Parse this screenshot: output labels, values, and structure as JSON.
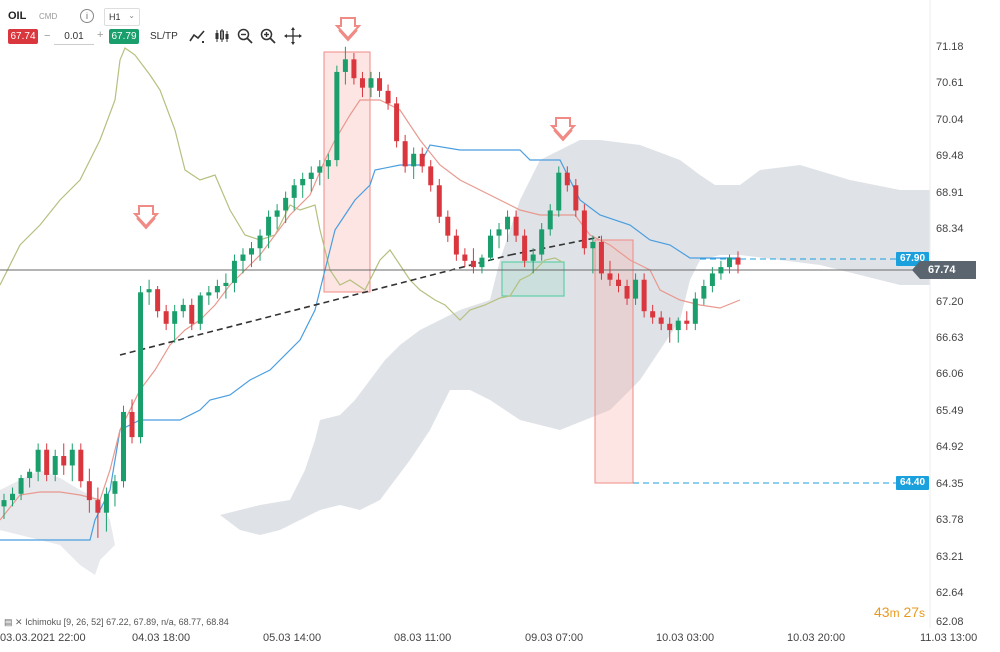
{
  "toolbar": {
    "symbol": "OIL",
    "symbol_type": "CMD",
    "info_icon": "info-icon",
    "timeframe": "H1",
    "bid": "67.74",
    "quantity": "0.01",
    "ask": "67.79",
    "sltp_label": "SL/TP",
    "tools": [
      "chart-type-icon",
      "indicators-icon",
      "zoom-out-icon",
      "zoom-in-icon",
      "crosshair-icon"
    ]
  },
  "price_axis": {
    "ticks": [
      "71.18",
      "70.61",
      "70.04",
      "69.48",
      "68.91",
      "68.34",
      "67.20",
      "66.63",
      "66.06",
      "65.49",
      "64.92",
      "64.35",
      "63.78",
      "63.21",
      "62.64",
      "62.08"
    ],
    "current_price": "67.74",
    "target_labels": [
      {
        "value": "67.90",
        "color": "#1aa0dd"
      },
      {
        "value": "64.40",
        "color": "#1aa0dd"
      }
    ]
  },
  "time_axis": {
    "ticks": [
      "03.03.2021 22:00",
      "04.03 18:00",
      "05.03 14:00",
      "08.03 11:00",
      "09.03 07:00",
      "10.03 03:00",
      "10.03 20:00",
      "11.03 13:00"
    ]
  },
  "indicator": {
    "label": "Ichimoku [9, 26, 52] 67.22, 67.89, n/a, 68.77, 68.84"
  },
  "timer": {
    "minutes": "43",
    "seconds": "27",
    "m_unit": "m",
    "s_unit": "s"
  },
  "colors": {
    "bull": "#1a9e6b",
    "bear": "#d9363e",
    "tenkan": "#e8998f",
    "kijun": "#4a9ee0",
    "chikou": "#b5c07f",
    "cloud": "#c9ced6",
    "zone_red": "#f5b5b0",
    "zone_green": "#5fd0a8"
  },
  "chart_data": {
    "type": "candlestick",
    "price_range": [
      62.08,
      71.6
    ],
    "current_price": 67.74,
    "candles": [
      [
        63.9,
        64.1,
        63.7,
        64.0
      ],
      [
        64.0,
        64.2,
        63.9,
        64.1
      ],
      [
        64.1,
        64.4,
        64.0,
        64.35
      ],
      [
        64.35,
        64.5,
        64.2,
        64.45
      ],
      [
        64.45,
        64.9,
        64.3,
        64.8
      ],
      [
        64.8,
        64.9,
        64.3,
        64.4
      ],
      [
        64.4,
        64.8,
        64.3,
        64.7
      ],
      [
        64.7,
        64.9,
        64.4,
        64.55
      ],
      [
        64.55,
        64.9,
        64.3,
        64.8
      ],
      [
        64.8,
        64.9,
        64.2,
        64.3
      ],
      [
        64.3,
        64.5,
        63.8,
        64.0
      ],
      [
        64.0,
        64.2,
        63.4,
        63.8
      ],
      [
        63.8,
        64.2,
        63.5,
        64.1
      ],
      [
        64.1,
        64.4,
        63.9,
        64.3
      ],
      [
        64.3,
        65.5,
        64.2,
        65.4
      ],
      [
        65.4,
        65.6,
        64.9,
        65.0
      ],
      [
        65.0,
        67.4,
        64.9,
        67.3
      ],
      [
        67.3,
        67.5,
        67.1,
        67.35
      ],
      [
        67.35,
        67.4,
        66.9,
        67.0
      ],
      [
        67.0,
        67.1,
        66.7,
        66.8
      ],
      [
        66.8,
        67.1,
        66.5,
        67.0
      ],
      [
        67.0,
        67.2,
        66.9,
        67.1
      ],
      [
        67.1,
        67.2,
        66.7,
        66.8
      ],
      [
        66.8,
        67.3,
        66.7,
        67.25
      ],
      [
        67.25,
        67.4,
        67.1,
        67.3
      ],
      [
        67.3,
        67.5,
        67.2,
        67.4
      ],
      [
        67.4,
        67.6,
        67.2,
        67.45
      ],
      [
        67.45,
        67.9,
        67.3,
        67.8
      ],
      [
        67.8,
        68.0,
        67.6,
        67.9
      ],
      [
        67.9,
        68.1,
        67.7,
        68.0
      ],
      [
        68.0,
        68.3,
        67.8,
        68.2
      ],
      [
        68.2,
        68.6,
        68.0,
        68.5
      ],
      [
        68.5,
        68.7,
        68.3,
        68.6
      ],
      [
        68.6,
        68.9,
        68.4,
        68.8
      ],
      [
        68.8,
        69.1,
        68.6,
        69.0
      ],
      [
        69.0,
        69.2,
        68.8,
        69.1
      ],
      [
        69.1,
        69.3,
        68.9,
        69.2
      ],
      [
        69.2,
        69.4,
        69.0,
        69.3
      ],
      [
        69.3,
        69.5,
        69.1,
        69.4
      ],
      [
        69.4,
        70.9,
        69.3,
        70.8
      ],
      [
        70.8,
        71.2,
        70.6,
        71.0
      ],
      [
        71.0,
        71.1,
        70.6,
        70.7
      ],
      [
        70.7,
        70.8,
        70.4,
        70.55
      ],
      [
        70.55,
        70.8,
        70.4,
        70.7
      ],
      [
        70.7,
        70.8,
        70.4,
        70.5
      ],
      [
        70.5,
        70.6,
        70.2,
        70.3
      ],
      [
        70.3,
        70.4,
        69.6,
        69.7
      ],
      [
        69.7,
        69.8,
        69.2,
        69.3
      ],
      [
        69.3,
        69.6,
        69.1,
        69.5
      ],
      [
        69.5,
        69.6,
        69.2,
        69.3
      ],
      [
        69.3,
        69.4,
        68.9,
        69.0
      ],
      [
        69.0,
        69.1,
        68.4,
        68.5
      ],
      [
        68.5,
        68.6,
        68.1,
        68.2
      ],
      [
        68.2,
        68.3,
        67.8,
        67.9
      ],
      [
        67.9,
        68.0,
        67.7,
        67.8
      ],
      [
        67.8,
        68.0,
        67.6,
        67.7
      ],
      [
        67.7,
        67.9,
        67.6,
        67.85
      ],
      [
        67.85,
        68.3,
        67.8,
        68.2
      ],
      [
        68.2,
        68.4,
        68.0,
        68.3
      ],
      [
        68.3,
        68.6,
        68.1,
        68.5
      ],
      [
        68.5,
        68.6,
        68.1,
        68.2
      ],
      [
        68.2,
        68.3,
        67.7,
        67.8
      ],
      [
        67.8,
        68.0,
        67.6,
        67.9
      ],
      [
        67.9,
        68.4,
        67.8,
        68.3
      ],
      [
        68.3,
        68.7,
        68.2,
        68.6
      ],
      [
        68.6,
        69.3,
        68.5,
        69.2
      ],
      [
        69.2,
        69.3,
        68.9,
        69.0
      ],
      [
        69.0,
        69.1,
        68.5,
        68.6
      ],
      [
        68.6,
        68.7,
        67.9,
        68.0
      ],
      [
        68.0,
        68.2,
        67.6,
        68.1
      ],
      [
        68.1,
        68.2,
        67.5,
        67.6
      ],
      [
        67.6,
        67.8,
        67.4,
        67.5
      ],
      [
        67.5,
        67.6,
        67.3,
        67.4
      ],
      [
        67.4,
        67.5,
        67.1,
        67.2
      ],
      [
        67.2,
        67.6,
        67.1,
        67.5
      ],
      [
        67.5,
        67.6,
        66.9,
        67.0
      ],
      [
        67.0,
        67.1,
        66.8,
        66.9
      ],
      [
        66.9,
        67.0,
        66.7,
        66.8
      ],
      [
        66.8,
        66.9,
        66.5,
        66.7
      ],
      [
        66.7,
        66.9,
        66.5,
        66.85
      ],
      [
        66.85,
        67.0,
        66.7,
        66.8
      ],
      [
        66.8,
        67.3,
        66.7,
        67.2
      ],
      [
        67.2,
        67.5,
        67.1,
        67.4
      ],
      [
        67.4,
        67.7,
        67.3,
        67.6
      ],
      [
        67.6,
        67.8,
        67.5,
        67.7
      ],
      [
        67.7,
        67.9,
        67.6,
        67.85
      ],
      [
        67.85,
        67.95,
        67.6,
        67.74
      ]
    ]
  }
}
